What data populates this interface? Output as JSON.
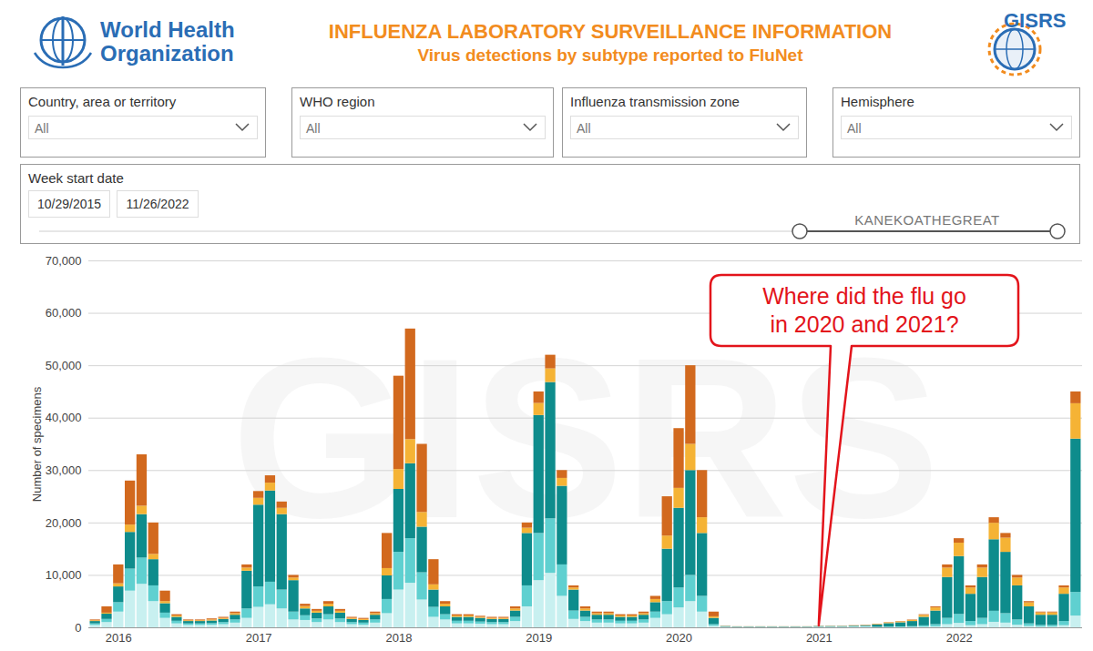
{
  "header": {
    "organization": "World Health Organization",
    "title": "INFLUENZA LABORATORY SURVEILLANCE INFORMATION",
    "subtitle": "Virus detections by subtype reported to FluNet",
    "logo_text": "GISRS"
  },
  "filters": [
    {
      "label": "Country, area or territory",
      "value": "All"
    },
    {
      "label": "WHO region",
      "value": "All"
    },
    {
      "label": "Influenza transmission zone",
      "value": "All"
    },
    {
      "label": "Hemisphere",
      "value": "All"
    }
  ],
  "date_filter": {
    "label": "Week start date",
    "start": "10/29/2015",
    "end": "11/26/2022"
  },
  "credit": "KANEKOATHEGREAT",
  "chart_data": {
    "type": "bar",
    "stacked": true,
    "ylabel": "Number of specimens",
    "watermark": "GISRS",
    "categories": [
      null,
      null,
      "2016",
      null,
      null,
      null,
      null,
      null,
      null,
      null,
      null,
      null,
      null,
      null,
      "2017",
      null,
      null,
      null,
      null,
      null,
      null,
      null,
      null,
      null,
      null,
      null,
      "2018",
      null,
      null,
      null,
      null,
      null,
      null,
      null,
      null,
      null,
      null,
      null,
      "2019",
      null,
      null,
      null,
      null,
      null,
      null,
      null,
      null,
      null,
      null,
      null,
      "2020",
      null,
      null,
      null,
      null,
      null,
      null,
      null,
      null,
      null,
      null,
      null,
      "2021",
      null,
      null,
      null,
      null,
      null,
      null,
      null,
      null,
      null,
      null,
      null,
      "2022",
      null,
      null,
      null,
      null,
      null,
      null,
      null,
      null,
      null,
      null
    ],
    "series": [
      {
        "color": "#c8f0f0",
        "values": [
          450,
          1000,
          3000,
          7000,
          8300,
          5000,
          1800,
          750,
          450,
          450,
          500,
          600,
          900,
          1800,
          3900,
          4400,
          3600,
          1500,
          1400,
          1000,
          1500,
          1000,
          600,
          500,
          900,
          2700,
          7200,
          8500,
          5300,
          2000,
          1500,
          750,
          750,
          700,
          600,
          600,
          1200,
          4000,
          9000,
          10400,
          6000,
          1600,
          1200,
          900,
          900,
          750,
          750,
          900,
          1800,
          2500,
          3800,
          5000,
          3000,
          300,
          90,
          60,
          60,
          60,
          60,
          60,
          60,
          60,
          90,
          90,
          90,
          120,
          150,
          35,
          50,
          60,
          75,
          125,
          200,
          600,
          850,
          400,
          600,
          1050,
          900,
          500,
          250,
          150,
          150,
          400,
          2250
        ]
      },
      {
        "color": "#5fd0d0",
        "values": [
          300,
          600,
          1800,
          4200,
          5000,
          3000,
          1000,
          500,
          300,
          300,
          300,
          400,
          600,
          1800,
          3900,
          4300,
          3600,
          1500,
          900,
          700,
          1000,
          700,
          400,
          400,
          600,
          2700,
          7200,
          8500,
          5200,
          1900,
          1000,
          500,
          500,
          400,
          400,
          400,
          800,
          4000,
          9000,
          10400,
          6000,
          1600,
          800,
          600,
          600,
          500,
          500,
          600,
          1200,
          2500,
          3800,
          5000,
          3000,
          300,
          60,
          40,
          40,
          40,
          40,
          40,
          40,
          40,
          60,
          60,
          60,
          80,
          100,
          70,
          100,
          120,
          150,
          250,
          400,
          1200,
          1700,
          800,
          1200,
          2100,
          1800,
          1000,
          500,
          300,
          300,
          800,
          4500
        ]
      },
      {
        "color": "#0e8c8c",
        "values": [
          450,
          1000,
          3000,
          7000,
          8300,
          5000,
          1800,
          750,
          450,
          450,
          500,
          600,
          900,
          7200,
          15600,
          17400,
          14400,
          6000,
          1300,
          1100,
          1500,
          1100,
          600,
          500,
          900,
          4500,
          12000,
          14300,
          8700,
          3300,
          1500,
          750,
          750,
          700,
          600,
          600,
          1200,
          10000,
          22500,
          26000,
          15000,
          4000,
          1200,
          900,
          900,
          750,
          750,
          900,
          1800,
          10000,
          15200,
          20000,
          12000,
          1200,
          90,
          60,
          60,
          60,
          60,
          60,
          60,
          60,
          90,
          90,
          90,
          120,
          150,
          455,
          650,
          780,
          975,
          1625,
          2600,
          7800,
          11050,
          5200,
          7800,
          13650,
          11700,
          6500,
          3250,
          1950,
          1950,
          5200,
          29250
        ]
      },
      {
        "color": "#f5b335",
        "values": [
          150,
          200,
          600,
          1400,
          1600,
          1000,
          400,
          250,
          150,
          150,
          200,
          200,
          300,
          600,
          1300,
          1500,
          1200,
          500,
          450,
          350,
          500,
          350,
          200,
          200,
          300,
          1400,
          3800,
          4600,
          2800,
          1000,
          500,
          250,
          250,
          200,
          200,
          200,
          400,
          1000,
          2300,
          2600,
          1500,
          400,
          400,
          300,
          300,
          250,
          250,
          300,
          600,
          2500,
          3800,
          5000,
          3000,
          300,
          30,
          20,
          20,
          20,
          20,
          20,
          20,
          20,
          30,
          30,
          30,
          40,
          50,
          105,
          150,
          180,
          225,
          375,
          600,
          1800,
          2550,
          1200,
          1800,
          3150,
          2700,
          1500,
          750,
          450,
          450,
          1200,
          6750
        ]
      },
      {
        "color": "#d2691e",
        "values": [
          150,
          1200,
          3600,
          8400,
          9800,
          6000,
          2000,
          250,
          150,
          150,
          200,
          200,
          300,
          600,
          1300,
          1400,
          1200,
          500,
          450,
          350,
          500,
          350,
          200,
          200,
          300,
          6700,
          17800,
          21100,
          13000,
          4800,
          500,
          250,
          250,
          200,
          200,
          200,
          400,
          1000,
          2200,
          2600,
          1500,
          400,
          400,
          300,
          300,
          250,
          250,
          300,
          600,
          7500,
          11400,
          15000,
          9000,
          900,
          30,
          20,
          20,
          20,
          20,
          20,
          20,
          20,
          30,
          30,
          30,
          40,
          50,
          35,
          50,
          60,
          75,
          125,
          200,
          600,
          850,
          400,
          600,
          1050,
          900,
          500,
          250,
          150,
          150,
          400,
          2250
        ]
      }
    ],
    "ylim": [
      0,
      70000
    ],
    "yticks": [
      0,
      {
        "value": 10000,
        "label": "10,000"
      },
      {
        "value": 20000,
        "label": "20,000"
      },
      {
        "value": 30000,
        "label": "30,000"
      },
      {
        "value": 40000,
        "label": "40,000"
      },
      {
        "value": 50000,
        "label": "50,000"
      },
      {
        "value": 60000,
        "label": "60,000"
      },
      {
        "value": 70000,
        "label": "70,000"
      }
    ],
    "grid": true,
    "annotations": [
      {
        "text": "Where did the flu go in 2020 and 2021?",
        "x": "2021",
        "y": 0
      }
    ]
  }
}
